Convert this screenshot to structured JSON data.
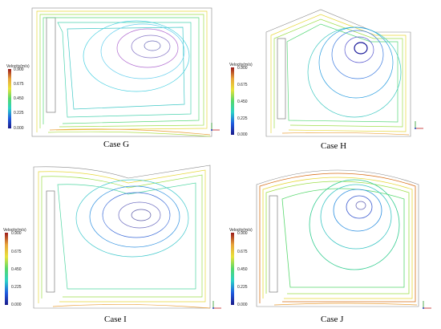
{
  "panels": [
    {
      "id": "g",
      "caption": "Case G"
    },
    {
      "id": "h",
      "caption": "Case H"
    },
    {
      "id": "i",
      "caption": "Case I"
    },
    {
      "id": "j",
      "caption": "Case J"
    }
  ],
  "legend": {
    "title": "Velocity(m/s)",
    "ticks": [
      "0.900",
      "0.675",
      "0.450",
      "0.225",
      "0.000"
    ],
    "colors": [
      "#9b1a1a",
      "#e8a43a",
      "#e8e23a",
      "#54d86a",
      "#2ad2c8",
      "#1e5be0",
      "#1a1a8a"
    ]
  }
}
